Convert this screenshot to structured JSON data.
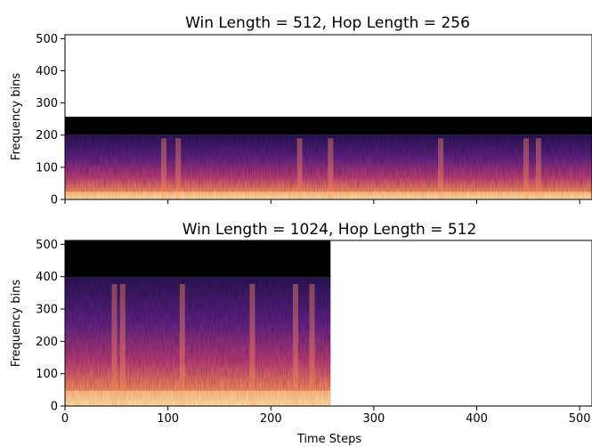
{
  "chart_data": [
    {
      "type": "heatmap",
      "title": "Win Length = 512, Hop Length = 256",
      "xlabel": "",
      "ylabel": "Frequency bins",
      "xlim": [
        0,
        512
      ],
      "ylim": [
        0,
        512
      ],
      "x_ticks": [
        0,
        100,
        200,
        300,
        400,
        500
      ],
      "x_tick_labels_shown": false,
      "y_ticks": [
        0,
        100,
        200,
        300,
        400,
        500
      ],
      "y_tick_labels": [
        "0",
        "100",
        "200",
        "300",
        "400",
        "500"
      ],
      "data_extent": {
        "time_steps": [
          0,
          512
        ],
        "frequency_bins": [
          0,
          257
        ]
      },
      "black_region_frequency_bins": [
        200,
        257
      ],
      "colormap": "magma",
      "bright_columns_time_steps": [
        96,
        110,
        228,
        258,
        365,
        448,
        460
      ],
      "grid": false
    },
    {
      "type": "heatmap",
      "title": "Win Length = 1024, Hop Length = 512",
      "xlabel": "Time Steps",
      "ylabel": "Frequency bins",
      "xlim": [
        0,
        512
      ],
      "ylim": [
        0,
        512
      ],
      "x_ticks": [
        0,
        100,
        200,
        300,
        400,
        500
      ],
      "x_tick_labels": [
        "0",
        "100",
        "200",
        "300",
        "400",
        "500"
      ],
      "y_ticks": [
        0,
        100,
        200,
        300,
        400,
        500
      ],
      "y_tick_labels": [
        "0",
        "100",
        "200",
        "300",
        "400",
        "500"
      ],
      "data_extent": {
        "time_steps": [
          0,
          258
        ],
        "frequency_bins": [
          0,
          513
        ]
      },
      "black_region_frequency_bins": [
        397,
        513
      ],
      "colormap": "magma",
      "bright_columns_time_steps": [
        48,
        56,
        114,
        182,
        224,
        240
      ],
      "grid": false
    }
  ],
  "colors": {
    "black_region": "#000000",
    "magma_low": "#1a0d3a",
    "magma_mid": "#8c2b7a",
    "magma_high": "#f0845a",
    "magma_peak": "#fdd49a"
  }
}
